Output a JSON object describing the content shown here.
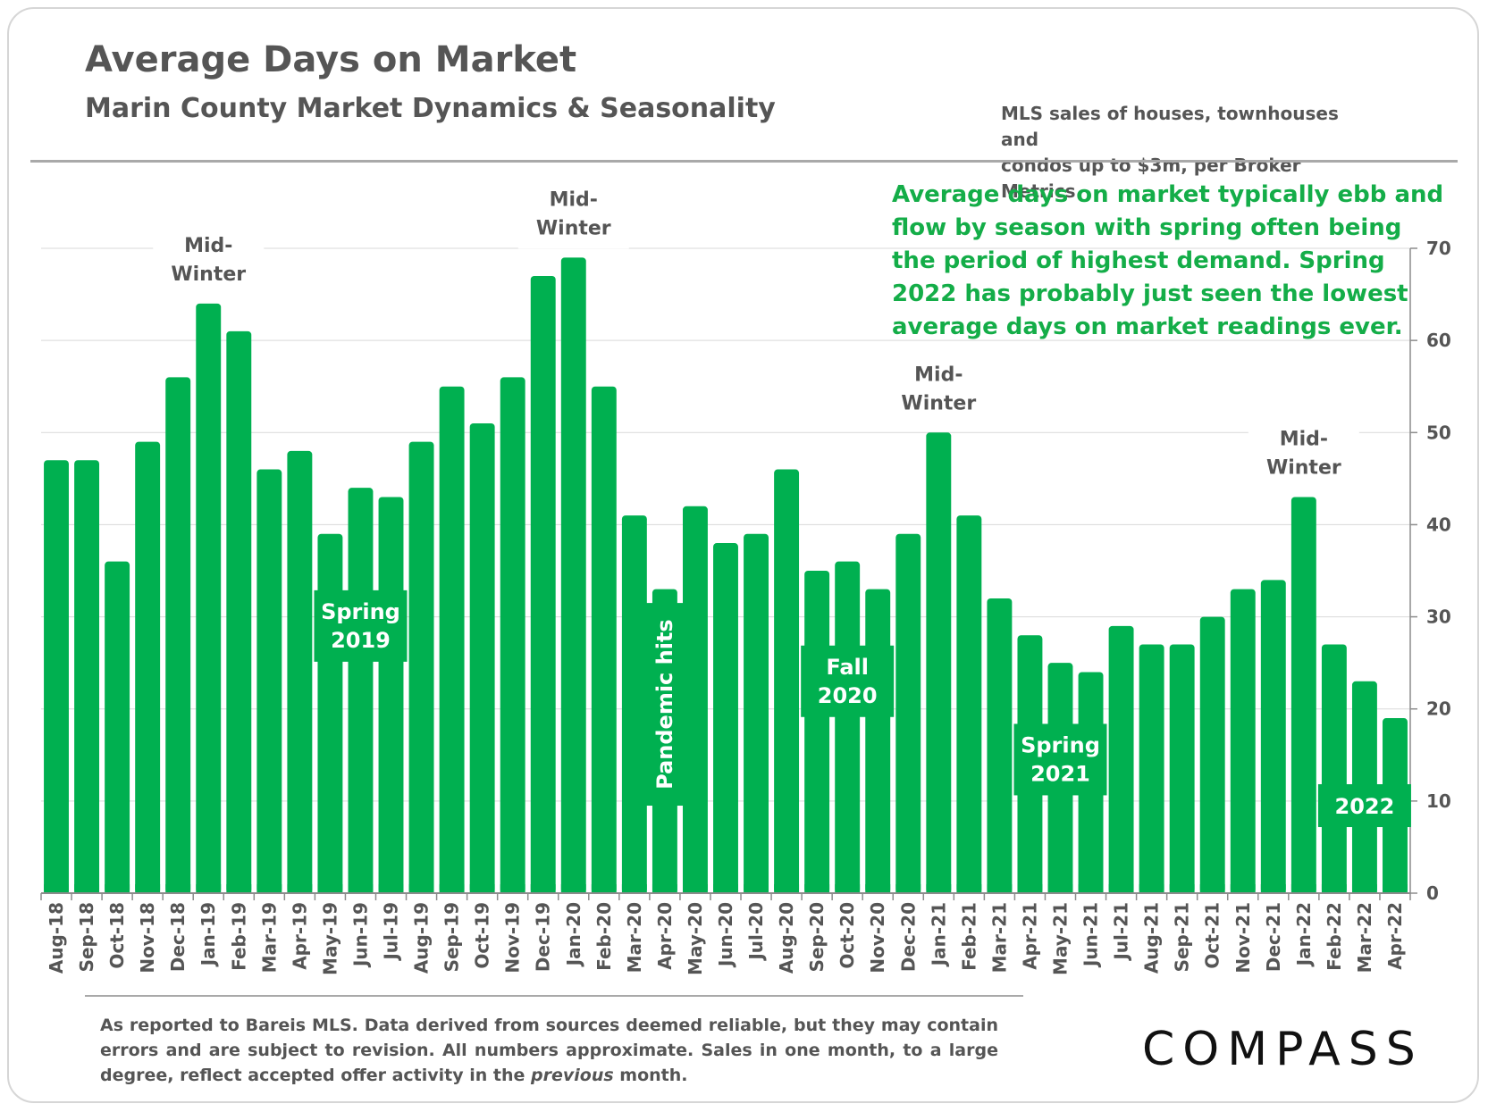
{
  "header": {
    "title": "Average Days on Market",
    "subtitle": "Marin County Market Dynamics & Seasonality",
    "source_line1": "MLS sales of houses, townhouses and",
    "source_line2": "condos up to $3m, per Broker Metrics"
  },
  "commentary": {
    "lines": [
      "Average days on market typically ebb and",
      "flow by season with spring often being",
      "the period of highest demand. Spring",
      "2022 has probably just seen the lowest",
      "average days on market readings ever."
    ]
  },
  "chart_data": {
    "type": "bar",
    "title": "Average Days on Market",
    "categories": [
      "Aug-18",
      "Sep-18",
      "Oct-18",
      "Nov-18",
      "Dec-18",
      "Jan-19",
      "Feb-19",
      "Mar-19",
      "Apr-19",
      "May-19",
      "Jun-19",
      "Jul-19",
      "Aug-19",
      "Sep-19",
      "Oct-19",
      "Nov-19",
      "Dec-19",
      "Jan-20",
      "Feb-20",
      "Mar-20",
      "Apr-20",
      "May-20",
      "Jun-20",
      "Jul-20",
      "Aug-20",
      "Sep-20",
      "Oct-20",
      "Nov-20",
      "Dec-20",
      "Jan-21",
      "Feb-21",
      "Mar-21",
      "Apr-21",
      "May-21",
      "Jun-21",
      "Jul-21",
      "Aug-21",
      "Sep-21",
      "Oct-21",
      "Nov-21",
      "Dec-21",
      "Jan-22",
      "Feb-22",
      "Mar-22",
      "Apr-22"
    ],
    "values": [
      47,
      47,
      36,
      49,
      56,
      64,
      61,
      46,
      48,
      39,
      44,
      43,
      49,
      55,
      51,
      56,
      67,
      69,
      55,
      41,
      33,
      42,
      38,
      39,
      46,
      35,
      36,
      33,
      39,
      50,
      41,
      32,
      28,
      25,
      24,
      29,
      27,
      27,
      30,
      33,
      34,
      43,
      27,
      23,
      19
    ],
    "ylim": [
      0,
      70
    ],
    "yticks": [
      0,
      10,
      20,
      30,
      40,
      50,
      60,
      70
    ],
    "y_axis_side": "right",
    "grid": true,
    "bar_color": "#00b050",
    "annotations": [
      {
        "text_line1": "Mid-",
        "text_line2": "Winter",
        "category": "Jan-19"
      },
      {
        "text_line1": "Mid-",
        "text_line2": "Winter",
        "category": "Jan-20"
      },
      {
        "text_line1": "Mid-",
        "text_line2": "Winter",
        "category": "Jan-21"
      },
      {
        "text_line1": "Mid-",
        "text_line2": "Winter",
        "category": "Jan-22"
      }
    ],
    "callouts": [
      {
        "text_line1": "Spring",
        "text_line2": "2019",
        "category": "Jun-19"
      },
      {
        "text_line1": "Pandemic hits",
        "text_line2": "",
        "category": "Apr-20",
        "vertical": true
      },
      {
        "text_line1": "Fall",
        "text_line2": "2020",
        "category": "Oct-20"
      },
      {
        "text_line1": "Spring",
        "text_line2": "2021",
        "category": "May-21"
      },
      {
        "text_line1": "2022",
        "text_line2": "",
        "category": "Mar-22"
      }
    ]
  },
  "footer": {
    "note_part1": "As reported to Bareis MLS. Data derived from sources deemed reliable, but they may contain errors and are subject to revision. All numbers approximate. Sales in one month, to a large degree, reflect accepted offer activity in the ",
    "note_italic": "previous",
    "note_part2": " month.",
    "logo": "COMPASS"
  }
}
